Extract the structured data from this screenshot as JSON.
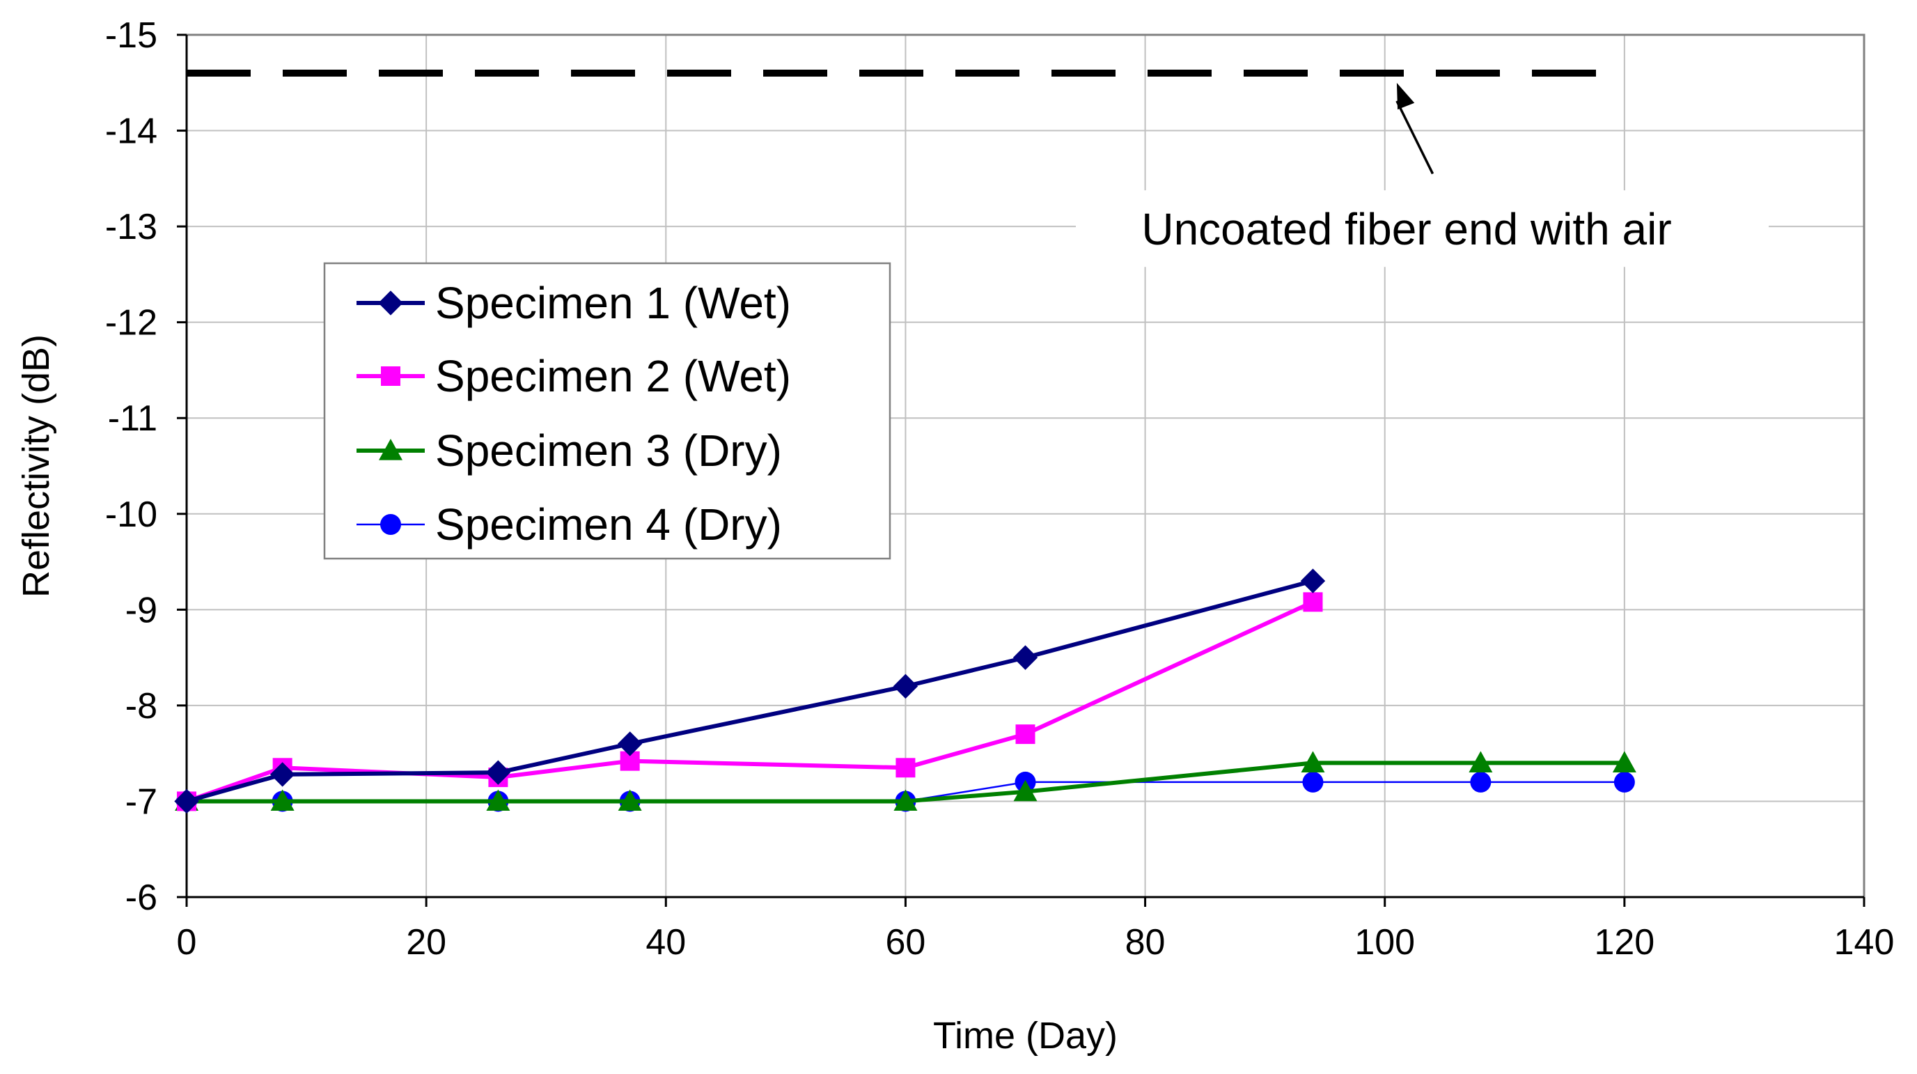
{
  "chart_data": {
    "type": "line",
    "title": "",
    "xlabel": "Time (Day)",
    "ylabel": "Reflectivity (dB)",
    "xlim": [
      0,
      140
    ],
    "ylim": [
      -6,
      -15
    ],
    "x_ticks": [
      0,
      20,
      40,
      60,
      80,
      100,
      120,
      140
    ],
    "x_tick_labels": [
      "0",
      "20",
      "40",
      "60",
      "80",
      "100",
      "120",
      "140"
    ],
    "y_ticks": [
      -6,
      -7,
      -8,
      -9,
      -10,
      -11,
      -12,
      -13,
      -14,
      -15
    ],
    "y_tick_labels": [
      "-6",
      "-7",
      "-8",
      "-9",
      "-10",
      "-11",
      "-12",
      "-13",
      "-14",
      "-15"
    ],
    "grid": true,
    "legend_position": "upper-left",
    "series": [
      {
        "name": "Specimen 1 (Wet)",
        "color": "#000080",
        "marker": "diamond",
        "line_width": "thick",
        "x": [
          0,
          8,
          26,
          37,
          60,
          70,
          94
        ],
        "values": [
          -7.0,
          -7.28,
          -7.3,
          -7.6,
          -8.2,
          -8.5,
          -9.3
        ]
      },
      {
        "name": "Specimen 2 (Wet)",
        "color": "#FF00FF",
        "marker": "square",
        "line_width": "thick",
        "x": [
          0,
          8,
          26,
          37,
          60,
          70,
          94
        ],
        "values": [
          -7.0,
          -7.35,
          -7.25,
          -7.42,
          -7.35,
          -7.7,
          -9.08
        ]
      },
      {
        "name": "Specimen 3 (Dry)",
        "color": "#008000",
        "marker": "triangle",
        "line_width": "thick",
        "x": [
          0,
          8,
          26,
          37,
          60,
          70,
          94,
          108,
          120
        ],
        "values": [
          -7.0,
          -7.0,
          -7.0,
          -7.0,
          -7.0,
          -7.1,
          -7.4,
          -7.4,
          -7.4
        ]
      },
      {
        "name": "Specimen 4 (Dry)",
        "color": "#0000FF",
        "marker": "circle",
        "line_width": "thin",
        "x": [
          0,
          8,
          26,
          37,
          60,
          70,
          94,
          108,
          120
        ],
        "values": [
          -7.0,
          -7.0,
          -7.0,
          -7.0,
          -7.0,
          -7.2,
          -7.2,
          -7.2,
          -7.2
        ]
      }
    ],
    "reference_line": {
      "label": "Uncoated fiber end with air",
      "value": -14.6,
      "x_range": [
        0,
        120
      ],
      "style": "dashed",
      "color": "#000000",
      "arrow_tip_x": 101,
      "arrow_tail_x": 104,
      "arrow_tail_value": -13.55
    }
  }
}
